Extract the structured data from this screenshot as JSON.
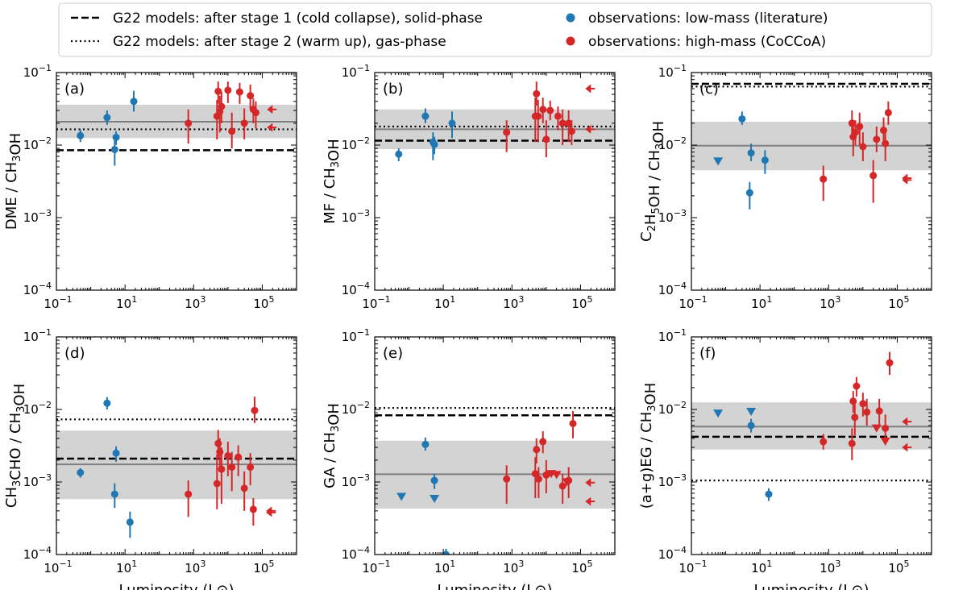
{
  "chart_data": {
    "type": "scatter",
    "x_scale": "log",
    "y_scale": "log",
    "xlim": [
      0.1,
      1000000
    ],
    "ylim": [
      0.0001,
      0.1
    ],
    "xlabel": "Luminosity (L⊙)",
    "x_ticks": [
      {
        "value": 0.1,
        "base": "10",
        "exp": "−1"
      },
      {
        "value": 10,
        "base": "10",
        "exp": "1"
      },
      {
        "value": 1000,
        "base": "10",
        "exp": "3"
      },
      {
        "value": 100000,
        "base": "10",
        "exp": "5"
      }
    ],
    "y_ticks": [
      {
        "value": 0.0001,
        "base": "10",
        "exp": "−4"
      },
      {
        "value": 0.001,
        "base": "10",
        "exp": "−3"
      },
      {
        "value": 0.01,
        "base": "10",
        "exp": "−2"
      },
      {
        "value": 0.1,
        "base": "10",
        "exp": "−1"
      }
    ],
    "colors": {
      "low_mass": "#1f77b4",
      "high_mass": "#d62728",
      "band": "#d3d3d3",
      "median": "#808080",
      "model": "#000000"
    },
    "legend": {
      "placement": "top",
      "entries": [
        {
          "key": "stage1",
          "label": "G22 models: after stage 1 (cold collapse), solid-phase",
          "style": "dashed"
        },
        {
          "key": "stage2",
          "label": "G22 models: after stage 2 (warm up), gas-phase",
          "style": "dotted"
        },
        {
          "key": "low",
          "label": "observations: low-mass (literature)",
          "style": "marker-blue"
        },
        {
          "key": "high",
          "label": "observations: high-mass (CoCCoA)",
          "style": "marker-red"
        }
      ]
    },
    "panels": [
      {
        "tag": "(a)",
        "ylabel_parts": [
          {
            "t": "DME / CH"
          },
          {
            "t": "3",
            "sub": true
          },
          {
            "t": "OH"
          }
        ],
        "model_stage1": 0.0085,
        "model_stage2": 0.0165,
        "median": 0.021,
        "band": [
          0.0125,
          0.036
        ],
        "low_mass": [
          {
            "x": 0.5,
            "y": 0.0135,
            "lo": 0.011,
            "hi": 0.0165
          },
          {
            "x": 3,
            "y": 0.024,
            "lo": 0.019,
            "hi": 0.03
          },
          {
            "x": 5,
            "y": 0.0087,
            "lo": 0.0052,
            "hi": 0.0125
          },
          {
            "x": 5.5,
            "y": 0.0128,
            "lo": 0.01,
            "hi": 0.0155
          },
          {
            "x": 18,
            "y": 0.04,
            "lo": 0.029,
            "hi": 0.056
          }
        ],
        "high_mass": [
          {
            "x": 700,
            "y": 0.02,
            "lo": 0.0105,
            "hi": 0.031
          },
          {
            "x": 4800,
            "y": 0.025,
            "lo": 0.012,
            "hi": 0.042
          },
          {
            "x": 5200,
            "y": 0.055,
            "lo": 0.037,
            "hi": 0.075
          },
          {
            "x": 5800,
            "y": 0.029,
            "lo": 0.015,
            "hi": 0.048
          },
          {
            "x": 6500,
            "y": 0.034,
            "lo": 0.02,
            "hi": 0.054
          },
          {
            "x": 10000,
            "y": 0.057,
            "lo": 0.038,
            "hi": 0.075
          },
          {
            "x": 13000,
            "y": 0.0155,
            "lo": 0.009,
            "hi": 0.028
          },
          {
            "x": 22000,
            "y": 0.054,
            "lo": 0.037,
            "hi": 0.072
          },
          {
            "x": 30000,
            "y": 0.02,
            "lo": 0.012,
            "hi": 0.032
          },
          {
            "x": 45000,
            "y": 0.048,
            "lo": 0.031,
            "hi": 0.068
          },
          {
            "x": 55000,
            "y": 0.031,
            "lo": 0.02,
            "hi": 0.044
          },
          {
            "x": 65000,
            "y": 0.028,
            "lo": 0.017,
            "hi": 0.04
          }
        ],
        "high_mass_limits": [
          {
            "x": 180000,
            "y": 0.031,
            "marker": "left"
          },
          {
            "x": 180000,
            "y": 0.0175,
            "marker": "left"
          }
        ],
        "low_mass_limits": []
      },
      {
        "tag": "(b)",
        "ylabel_parts": [
          {
            "t": "MF / CH"
          },
          {
            "t": "3",
            "sub": true
          },
          {
            "t": "OH"
          }
        ],
        "model_stage1": 0.0115,
        "model_stage2": 0.018,
        "median": 0.0165,
        "band": [
          0.0088,
          0.031
        ],
        "low_mass": [
          {
            "x": 0.5,
            "y": 0.0075,
            "lo": 0.006,
            "hi": 0.009
          },
          {
            "x": 3,
            "y": 0.025,
            "lo": 0.02,
            "hi": 0.032
          },
          {
            "x": 5,
            "y": 0.011,
            "lo": 0.0062,
            "hi": 0.015
          },
          {
            "x": 5.5,
            "y": 0.0102,
            "lo": 0.0075,
            "hi": 0.013
          },
          {
            "x": 18,
            "y": 0.02,
            "lo": 0.0125,
            "hi": 0.029
          }
        ],
        "high_mass": [
          {
            "x": 700,
            "y": 0.015,
            "lo": 0.008,
            "hi": 0.022
          },
          {
            "x": 4800,
            "y": 0.025,
            "lo": 0.011,
            "hi": 0.045
          },
          {
            "x": 5200,
            "y": 0.051,
            "lo": 0.035,
            "hi": 0.075
          },
          {
            "x": 5800,
            "y": 0.025,
            "lo": 0.011,
            "hi": 0.042
          },
          {
            "x": 8000,
            "y": 0.031,
            "lo": 0.02,
            "hi": 0.045
          },
          {
            "x": 10000,
            "y": 0.012,
            "lo": 0.0068,
            "hi": 0.022
          },
          {
            "x": 13000,
            "y": 0.03,
            "lo": 0.022,
            "hi": 0.041
          },
          {
            "x": 22000,
            "y": 0.025,
            "lo": 0.016,
            "hi": 0.034
          },
          {
            "x": 30000,
            "y": 0.02,
            "lo": 0.01,
            "hi": 0.031
          },
          {
            "x": 45000,
            "y": 0.02,
            "lo": 0.011,
            "hi": 0.03
          },
          {
            "x": 55000,
            "y": 0.0155,
            "lo": 0.01,
            "hi": 0.022
          }
        ],
        "high_mass_limits": [
          {
            "x": 180000,
            "y": 0.06,
            "marker": "left"
          },
          {
            "x": 180000,
            "y": 0.0165,
            "marker": "left"
          }
        ],
        "low_mass_limits": []
      },
      {
        "tag": "(c)",
        "ylabel_parts": [
          {
            "t": "C"
          },
          {
            "t": "2",
            "sub": true
          },
          {
            "t": "H"
          },
          {
            "t": "5",
            "sub": true
          },
          {
            "t": "OH / CH"
          },
          {
            "t": "3",
            "sub": true
          },
          {
            "t": "OH"
          }
        ],
        "model_stage1": 0.07,
        "model_stage2": 0.064,
        "median": 0.0098,
        "band": [
          0.0045,
          0.021
        ],
        "low_mass": [
          {
            "x": 3,
            "y": 0.023,
            "lo": 0.019,
            "hi": 0.029
          },
          {
            "x": 5,
            "y": 0.0022,
            "lo": 0.0013,
            "hi": 0.0031
          },
          {
            "x": 5.5,
            "y": 0.0078,
            "lo": 0.006,
            "hi": 0.0105
          },
          {
            "x": 14,
            "y": 0.0062,
            "lo": 0.004,
            "hi": 0.0085
          }
        ],
        "high_mass": [
          {
            "x": 700,
            "y": 0.0034,
            "lo": 0.0017,
            "hi": 0.0052
          },
          {
            "x": 4800,
            "y": 0.02,
            "lo": 0.013,
            "hi": 0.03
          },
          {
            "x": 5200,
            "y": 0.013,
            "lo": 0.007,
            "hi": 0.022
          },
          {
            "x": 6000,
            "y": 0.015,
            "lo": 0.01,
            "hi": 0.022
          },
          {
            "x": 8000,
            "y": 0.018,
            "lo": 0.01,
            "hi": 0.028
          },
          {
            "x": 10000,
            "y": 0.0095,
            "lo": 0.006,
            "hi": 0.015
          },
          {
            "x": 20000,
            "y": 0.0038,
            "lo": 0.0016,
            "hi": 0.0062
          },
          {
            "x": 25000,
            "y": 0.012,
            "lo": 0.008,
            "hi": 0.018
          },
          {
            "x": 40000,
            "y": 0.016,
            "lo": 0.01,
            "hi": 0.024
          },
          {
            "x": 45000,
            "y": 0.0105,
            "lo": 0.006,
            "hi": 0.016
          },
          {
            "x": 55000,
            "y": 0.028,
            "lo": 0.019,
            "hi": 0.04
          }
        ],
        "high_mass_limits": [
          {
            "x": 180000,
            "y": 0.0035,
            "marker": "left"
          },
          {
            "x": 180000,
            "y": 0.0033,
            "marker": "left"
          }
        ],
        "low_mass_limits": [
          {
            "x": 0.6,
            "y": 0.0061,
            "marker": "down"
          }
        ]
      },
      {
        "tag": "(d)",
        "ylabel_parts": [
          {
            "t": "CH"
          },
          {
            "t": "3",
            "sub": true
          },
          {
            "t": "CHO / CH"
          },
          {
            "t": "3",
            "sub": true
          },
          {
            "t": "OH"
          }
        ],
        "model_stage1": 0.0021,
        "model_stage2": 0.0073,
        "median": 0.00175,
        "band": [
          0.00058,
          0.0051
        ],
        "low_mass": [
          {
            "x": 0.5,
            "y": 0.00135,
            "lo": 0.00115,
            "hi": 0.00155
          },
          {
            "x": 3,
            "y": 0.0122,
            "lo": 0.01,
            "hi": 0.0148
          },
          {
            "x": 5,
            "y": 0.00068,
            "lo": 0.00044,
            "hi": 0.00096
          },
          {
            "x": 5.5,
            "y": 0.0025,
            "lo": 0.0019,
            "hi": 0.0031
          },
          {
            "x": 14,
            "y": 0.00028,
            "lo": 0.00017,
            "hi": 0.00039
          }
        ],
        "high_mass": [
          {
            "x": 700,
            "y": 0.00068,
            "lo": 0.00033,
            "hi": 0.00105
          },
          {
            "x": 4800,
            "y": 0.00095,
            "lo": 0.00042,
            "hi": 0.0024
          },
          {
            "x": 5200,
            "y": 0.0034,
            "lo": 0.0021,
            "hi": 0.0052
          },
          {
            "x": 5800,
            "y": 0.0026,
            "lo": 0.0014,
            "hi": 0.004
          },
          {
            "x": 6500,
            "y": 0.0015,
            "lo": 0.0005,
            "hi": 0.003
          },
          {
            "x": 10000,
            "y": 0.0023,
            "lo": 0.0012,
            "hi": 0.0036
          },
          {
            "x": 13000,
            "y": 0.0016,
            "lo": 0.00075,
            "hi": 0.0026
          },
          {
            "x": 20000,
            "y": 0.0022,
            "lo": 0.0012,
            "hi": 0.0032
          },
          {
            "x": 30000,
            "y": 0.00082,
            "lo": 0.0004,
            "hi": 0.0014
          },
          {
            "x": 45000,
            "y": 0.0016,
            "lo": 0.0009,
            "hi": 0.0025
          },
          {
            "x": 55000,
            "y": 0.00042,
            "lo": 0.00025,
            "hi": 0.0006
          },
          {
            "x": 60000,
            "y": 0.0097,
            "lo": 0.0065,
            "hi": 0.015
          }
        ],
        "high_mass_limits": [
          {
            "x": 170000,
            "y": 0.0004,
            "marker": "left"
          },
          {
            "x": 170000,
            "y": 0.00038,
            "marker": "left"
          }
        ],
        "low_mass_limits": []
      },
      {
        "tag": "(e)",
        "ylabel_parts": [
          {
            "t": "GA / CH"
          },
          {
            "t": "3",
            "sub": true
          },
          {
            "t": "OH"
          }
        ],
        "model_stage1": 0.0083,
        "model_stage2": 0.0105,
        "median": 0.00128,
        "band": [
          0.00043,
          0.0037
        ],
        "low_mass": [
          {
            "x": 3,
            "y": 0.0033,
            "lo": 0.0027,
            "hi": 0.0041
          },
          {
            "x": 5.5,
            "y": 0.00105,
            "lo": 0.0008,
            "hi": 0.0013
          },
          {
            "x": 12,
            "y": 0.0001,
            "lo": 0.0001,
            "hi": 0.00012
          }
        ],
        "high_mass": [
          {
            "x": 700,
            "y": 0.0011,
            "lo": 0.0005,
            "hi": 0.0017
          },
          {
            "x": 4800,
            "y": 0.0013,
            "lo": 0.0006,
            "hi": 0.0022
          },
          {
            "x": 5200,
            "y": 0.0028,
            "lo": 0.0018,
            "hi": 0.004
          },
          {
            "x": 6000,
            "y": 0.0011,
            "lo": 0.0006,
            "hi": 0.0016
          },
          {
            "x": 8000,
            "y": 0.0036,
            "lo": 0.0025,
            "hi": 0.005
          },
          {
            "x": 10000,
            "y": 0.00125,
            "lo": 0.0007,
            "hi": 0.002
          },
          {
            "x": 30000,
            "y": 0.00088,
            "lo": 0.0005,
            "hi": 0.0013
          },
          {
            "x": 45000,
            "y": 0.00105,
            "lo": 0.0006,
            "hi": 0.0016
          },
          {
            "x": 60000,
            "y": 0.0064,
            "lo": 0.004,
            "hi": 0.0095
          }
        ],
        "high_mass_limits": [
          {
            "x": 180000,
            "y": 0.00098,
            "marker": "left"
          },
          {
            "x": 180000,
            "y": 0.00054,
            "marker": "left"
          },
          {
            "x": 14000,
            "y": 0.00132,
            "marker": "down"
          },
          {
            "x": 20000,
            "y": 0.00128,
            "marker": "down"
          },
          {
            "x": 40000,
            "y": 0.00102,
            "marker": "down"
          }
        ],
        "low_mass_limits": [
          {
            "x": 0.6,
            "y": 0.00064,
            "marker": "down"
          },
          {
            "x": 5.5,
            "y": 0.0006,
            "marker": "down"
          }
        ]
      },
      {
        "tag": "(f)",
        "ylabel_parts": [
          {
            "t": "(a+g)EG / CH"
          },
          {
            "t": "3",
            "sub": true
          },
          {
            "t": "OH"
          }
        ],
        "model_stage1": 0.0042,
        "model_stage2": 0.00105,
        "median": 0.0058,
        "band": [
          0.0028,
          0.0125
        ],
        "low_mass": [
          {
            "x": 5.5,
            "y": 0.006,
            "lo": 0.0048,
            "hi": 0.0074
          },
          {
            "x": 18,
            "y": 0.00068,
            "lo": 0.00055,
            "hi": 0.00082
          }
        ],
        "high_mass": [
          {
            "x": 700,
            "y": 0.0036,
            "lo": 0.0028,
            "hi": 0.0046
          },
          {
            "x": 4800,
            "y": 0.0034,
            "lo": 0.002,
            "hi": 0.0055
          },
          {
            "x": 5200,
            "y": 0.013,
            "lo": 0.009,
            "hi": 0.018
          },
          {
            "x": 5800,
            "y": 0.0078,
            "lo": 0.0044,
            "hi": 0.012
          },
          {
            "x": 6500,
            "y": 0.021,
            "lo": 0.015,
            "hi": 0.028
          },
          {
            "x": 10000,
            "y": 0.012,
            "lo": 0.008,
            "hi": 0.017
          },
          {
            "x": 13000,
            "y": 0.0092,
            "lo": 0.006,
            "hi": 0.014
          },
          {
            "x": 30000,
            "y": 0.0095,
            "lo": 0.006,
            "hi": 0.014
          },
          {
            "x": 45000,
            "y": 0.0055,
            "lo": 0.0035,
            "hi": 0.0085
          },
          {
            "x": 60000,
            "y": 0.044,
            "lo": 0.03,
            "hi": 0.062
          }
        ],
        "high_mass_limits": [
          {
            "x": 180000,
            "y": 0.0068,
            "marker": "left"
          },
          {
            "x": 180000,
            "y": 0.003,
            "marker": "left"
          },
          {
            "x": 25000,
            "y": 0.0056,
            "marker": "down"
          },
          {
            "x": 45000,
            "y": 0.0037,
            "marker": "down"
          }
        ],
        "low_mass_limits": [
          {
            "x": 0.6,
            "y": 0.009,
            "marker": "down"
          },
          {
            "x": 5.5,
            "y": 0.0095,
            "marker": "down"
          }
        ]
      }
    ]
  }
}
